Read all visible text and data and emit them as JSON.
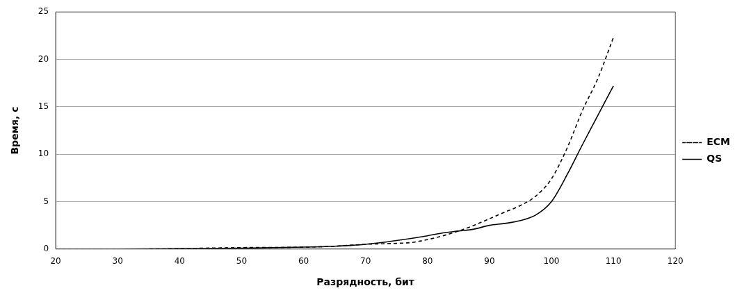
{
  "chart_data": {
    "type": "line",
    "xlabel": "Разрядность, бит",
    "ylabel": "Время, с",
    "xlim": [
      20,
      120
    ],
    "xticks": [
      20,
      30,
      40,
      50,
      60,
      70,
      80,
      90,
      100,
      110,
      120
    ],
    "ylim": [
      0,
      25
    ],
    "yticks": [
      0,
      5,
      10,
      15,
      20,
      25
    ],
    "grid": "y",
    "legend": "right",
    "marker": "none",
    "series": [
      {
        "name": "ECM",
        "color": "#000000",
        "line_style": "dashed",
        "x": [
          20,
          30,
          37,
          40,
          50,
          60,
          65,
          70,
          75,
          77.5,
          80,
          82.5,
          85,
          87.5,
          90,
          92.5,
          95,
          97.5,
          100,
          102.5,
          105,
          107.5,
          110
        ],
        "values": [
          0,
          0,
          0.02,
          0.05,
          0.15,
          0.2,
          0.3,
          0.5,
          0.6,
          0.7,
          1.0,
          1.4,
          1.9,
          2.5,
          3.2,
          3.9,
          4.6,
          5.6,
          7.4,
          10.6,
          14.6,
          18.0,
          22.3
        ]
      },
      {
        "name": "QS",
        "color": "#000000",
        "line_style": "solid",
        "x": [
          20,
          30,
          40,
          50,
          60,
          65,
          70,
          75,
          80,
          82.5,
          85,
          87.5,
          90,
          92.5,
          95,
          97.5,
          100,
          102.5,
          105,
          107.5,
          110
        ],
        "values": [
          0,
          0,
          0.05,
          0.1,
          0.2,
          0.3,
          0.5,
          0.9,
          1.4,
          1.7,
          1.9,
          2.1,
          2.5,
          2.7,
          3.0,
          3.6,
          5.0,
          7.8,
          11.0,
          14.1,
          17.2
        ]
      }
    ]
  }
}
